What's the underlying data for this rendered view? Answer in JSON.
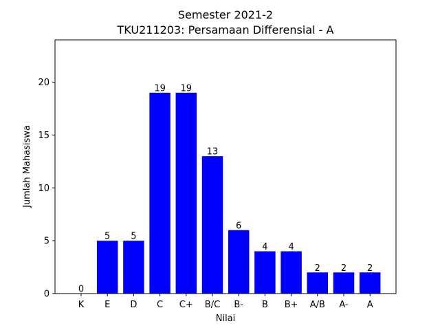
{
  "chart_data": {
    "type": "bar",
    "title_line1": "Semester 2021-2",
    "title_line2": "TKU211203: Persamaan Differensial - A",
    "xlabel": "Nilai",
    "ylabel": "Jumlah Mahasiswa",
    "categories": [
      "K",
      "E",
      "D",
      "C",
      "C+",
      "B/C",
      "B-",
      "B",
      "B+",
      "A/B",
      "A-",
      "A"
    ],
    "values": [
      0,
      5,
      5,
      19,
      19,
      13,
      6,
      4,
      4,
      2,
      2,
      2
    ],
    "ylim": [
      0,
      24
    ],
    "yticks": [
      0,
      5,
      10,
      15,
      20
    ],
    "bar_color": "#0000ff",
    "grid": false,
    "data_labels": true
  }
}
